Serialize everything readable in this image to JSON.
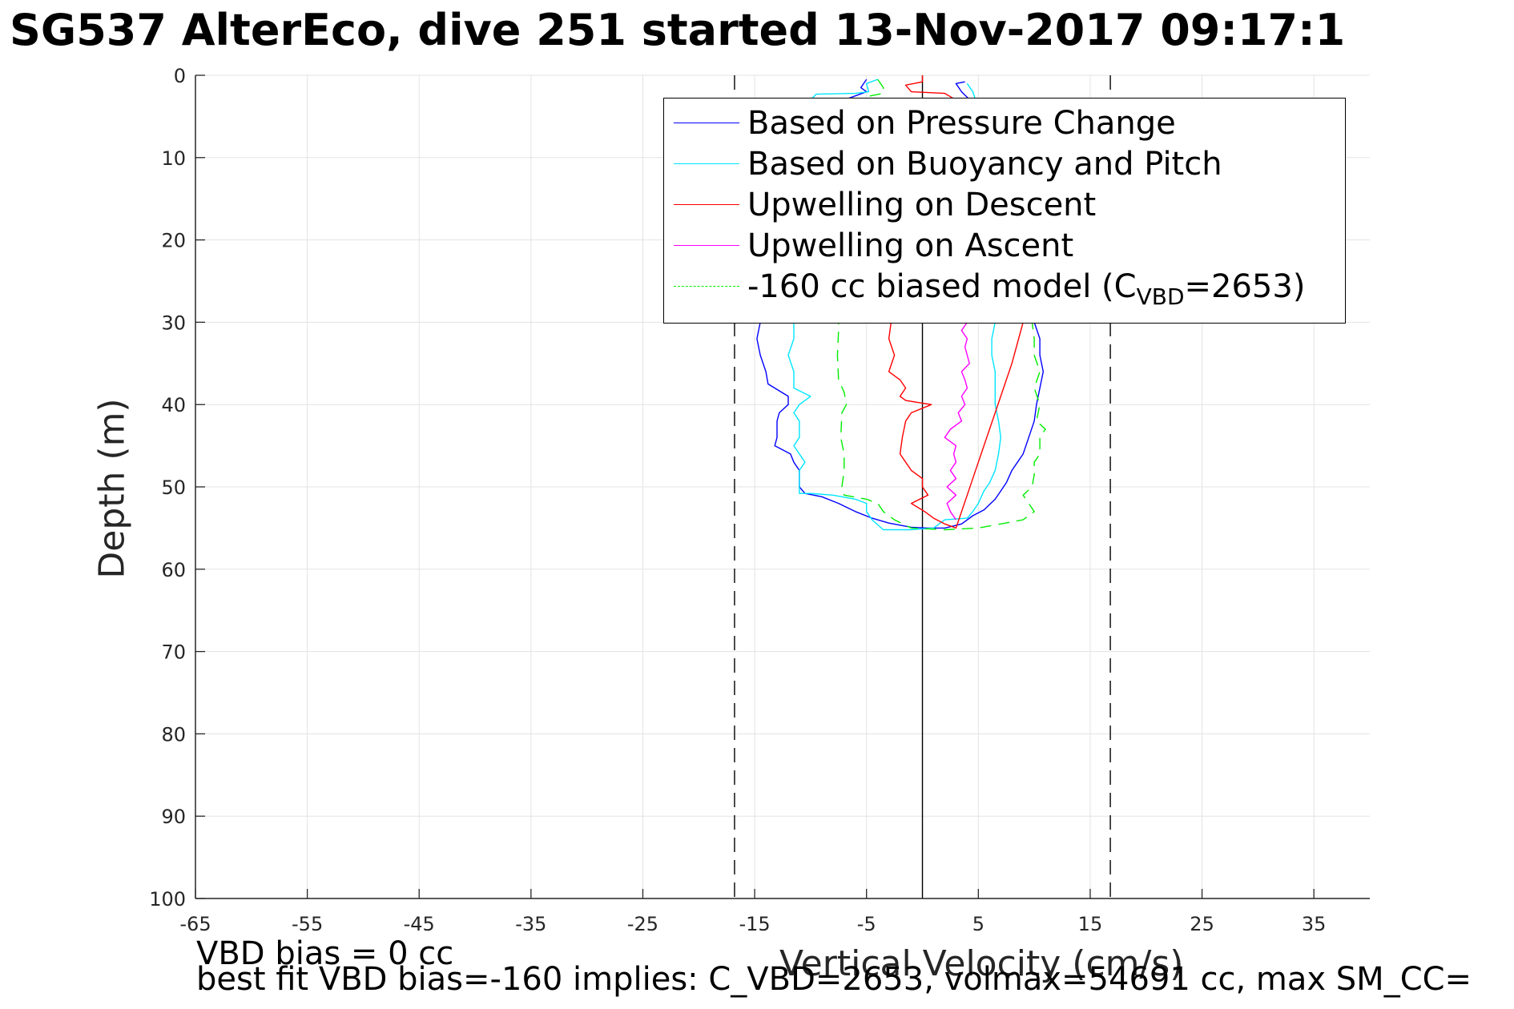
{
  "title": "SG537 AlterEco, dive 251 started 13-Nov-2017 09:17:1",
  "xlabel": "Vertical Velocity (cm/s)",
  "ylabel": "Depth (m)",
  "footer": {
    "line1": "VBD bias = 0 cc",
    "line2": "best fit VBD bias=-160 implies: C_VBD=2653, volmax=54691 cc, max SM_CC="
  },
  "legend": {
    "items": [
      {
        "label": "Based on Pressure Change",
        "color": "#0000ff",
        "dash": "solid"
      },
      {
        "label": "Based on Buoyancy and Pitch",
        "color": "#00e5ff",
        "dash": "solid"
      },
      {
        "label": "Upwelling on Descent",
        "color": "#ff0000",
        "dash": "solid"
      },
      {
        "label": "Upwelling on Ascent",
        "color": "#ff00ff",
        "dash": "solid"
      },
      {
        "label": "-160 cc biased model (C",
        "sub": "VBD",
        "suffix": "=2653)",
        "color": "#00ee00",
        "dash": "dashed"
      }
    ]
  },
  "chart_data": {
    "type": "line",
    "title": "SG537 AlterEco, dive 251 started 13-Nov-2017 09:17:1",
    "xlabel": "Vertical Velocity (cm/s)",
    "ylabel": "Depth (m)",
    "xlim": [
      -65,
      40
    ],
    "ylim": [
      0,
      100
    ],
    "y_reversed": true,
    "xticks": [
      -65,
      -55,
      -45,
      -35,
      -25,
      -15,
      -5,
      5,
      15,
      25,
      35
    ],
    "yticks": [
      0,
      10,
      20,
      30,
      40,
      50,
      60,
      70,
      80,
      90,
      100
    ],
    "grid": true,
    "legend_position": "top-right",
    "reference_lines": [
      {
        "x": 0,
        "style": "solid",
        "color": "#000000"
      },
      {
        "x": -16.8,
        "style": "dashed",
        "color": "#000000"
      },
      {
        "x": 16.8,
        "style": "dashed",
        "color": "#000000"
      }
    ],
    "series": [
      {
        "name": "Based on Pressure Change",
        "color": "#0000ff",
        "dash": "solid",
        "points": [
          [
            -5,
            0.5
          ],
          [
            -5.5,
            1.5
          ],
          [
            -5,
            2
          ],
          [
            -6,
            2.5
          ],
          [
            -7,
            3
          ],
          [
            -8,
            3.5
          ],
          [
            -9.5,
            4
          ],
          [
            -11,
            5
          ],
          [
            -12,
            6
          ],
          [
            -13,
            8
          ],
          [
            -13.5,
            10
          ],
          [
            -14,
            12
          ],
          [
            -14.5,
            14
          ],
          [
            -14.5,
            16
          ],
          [
            -15,
            18
          ],
          [
            -15,
            20
          ],
          [
            -14.8,
            22
          ],
          [
            -14.7,
            25
          ],
          [
            -14.5,
            28
          ],
          [
            -14.5,
            30
          ],
          [
            -14.8,
            32
          ],
          [
            -14.5,
            34
          ],
          [
            -14,
            36
          ],
          [
            -13.8,
            37.5
          ],
          [
            -12,
            39
          ],
          [
            -12,
            40
          ],
          [
            -12.8,
            41
          ],
          [
            -13,
            42
          ],
          [
            -13,
            44
          ],
          [
            -13.2,
            45
          ],
          [
            -11.8,
            46
          ],
          [
            -11.5,
            47
          ],
          [
            -11,
            48
          ],
          [
            -11,
            50
          ],
          [
            -10.5,
            50.8
          ],
          [
            -9,
            51.2
          ],
          [
            -7.5,
            52
          ],
          [
            -6,
            53
          ],
          [
            -4.5,
            53.8
          ],
          [
            -3,
            54.4
          ],
          [
            -1,
            54.9
          ],
          [
            0.5,
            55
          ],
          [
            2,
            55
          ],
          [
            3.5,
            54.5
          ],
          [
            4.5,
            53.5
          ],
          [
            5.5,
            52.8
          ],
          [
            6.5,
            51.5
          ],
          [
            7,
            50.5
          ],
          [
            7.5,
            49.5
          ],
          [
            8,
            48
          ],
          [
            8.5,
            47
          ],
          [
            9,
            46
          ],
          [
            9.5,
            44
          ],
          [
            10,
            42
          ],
          [
            10.2,
            40
          ],
          [
            10.5,
            38
          ],
          [
            10.8,
            36
          ],
          [
            10.5,
            34
          ],
          [
            10.5,
            32
          ],
          [
            10,
            30
          ],
          [
            9.8,
            28
          ],
          [
            9.8,
            26
          ],
          [
            9.5,
            24
          ],
          [
            9,
            22
          ],
          [
            8.5,
            20
          ],
          [
            8.5,
            18
          ],
          [
            8.2,
            16
          ],
          [
            8.2,
            14
          ],
          [
            8,
            12
          ],
          [
            7.8,
            10
          ],
          [
            7.5,
            8
          ],
          [
            6.5,
            6
          ],
          [
            5,
            4
          ],
          [
            3.5,
            2
          ],
          [
            3,
            1
          ],
          [
            3.8,
            0.8
          ]
        ]
      },
      {
        "name": "Based on Buoyancy and Pitch",
        "color": "#00e5ff",
        "dash": "solid",
        "points": [
          [
            -4,
            0.5
          ],
          [
            -5,
            1
          ],
          [
            -4.8,
            2
          ],
          [
            -6,
            2.2
          ],
          [
            -9.5,
            2.3
          ],
          [
            -10,
            3
          ],
          [
            -10.5,
            5
          ],
          [
            -11,
            8
          ],
          [
            -11.5,
            10
          ],
          [
            -11.8,
            12
          ],
          [
            -12,
            15
          ],
          [
            -12,
            18
          ],
          [
            -12.2,
            20
          ],
          [
            -12,
            22
          ],
          [
            -12,
            25
          ],
          [
            -11.5,
            28
          ],
          [
            -11.5,
            30
          ],
          [
            -11.5,
            32
          ],
          [
            -12,
            34
          ],
          [
            -11.5,
            36
          ],
          [
            -11.5,
            38
          ],
          [
            -10,
            39
          ],
          [
            -11,
            40
          ],
          [
            -11.5,
            41
          ],
          [
            -11,
            42
          ],
          [
            -11,
            44
          ],
          [
            -11.5,
            45
          ],
          [
            -11,
            46
          ],
          [
            -10.5,
            47
          ],
          [
            -11,
            48
          ],
          [
            -11,
            50
          ],
          [
            -11,
            50.8
          ],
          [
            -10,
            50.8
          ],
          [
            -8,
            51
          ],
          [
            -6,
            51.5
          ],
          [
            -5,
            52
          ],
          [
            -5,
            53
          ],
          [
            -4.5,
            54
          ],
          [
            -3.5,
            55.2
          ],
          [
            -1,
            55.2
          ],
          [
            1,
            55
          ],
          [
            2,
            54
          ],
          [
            4,
            53.8
          ],
          [
            4.5,
            53
          ],
          [
            5,
            52
          ],
          [
            5.5,
            50.5
          ],
          [
            6,
            49.5
          ],
          [
            6.5,
            48
          ],
          [
            6.8,
            46
          ],
          [
            7,
            44
          ],
          [
            6.8,
            42
          ],
          [
            6.5,
            40
          ],
          [
            6.5,
            38
          ],
          [
            6.5,
            36
          ],
          [
            6.2,
            34
          ],
          [
            6.2,
            32
          ],
          [
            6.5,
            30
          ],
          [
            6.2,
            28
          ],
          [
            6.2,
            26
          ],
          [
            6.5,
            24
          ],
          [
            6.5,
            22
          ],
          [
            6.5,
            20
          ],
          [
            6.2,
            18
          ],
          [
            6.2,
            16
          ],
          [
            6,
            14
          ],
          [
            6,
            12
          ],
          [
            6,
            10
          ],
          [
            5.8,
            8
          ],
          [
            5.5,
            6
          ],
          [
            5,
            4
          ],
          [
            4.5,
            2
          ],
          [
            4,
            1
          ]
        ]
      },
      {
        "name": "Upwelling on Descent",
        "color": "#ff0000",
        "dash": "solid",
        "points": [
          [
            0,
            0
          ],
          [
            0,
            0.8
          ],
          [
            -1.5,
            1.2
          ],
          [
            -1,
            2
          ],
          [
            2,
            2.2
          ],
          [
            3,
            3
          ],
          [
            3,
            4
          ],
          [
            2,
            5
          ],
          [
            1,
            6
          ],
          [
            0.2,
            7
          ],
          [
            -0.5,
            8
          ],
          [
            -1,
            10
          ],
          [
            -1.5,
            12
          ],
          [
            -1.5,
            14
          ],
          [
            -1.2,
            16
          ],
          [
            -0.8,
            18
          ],
          [
            -1,
            20
          ],
          [
            -1.5,
            22
          ],
          [
            -2,
            24
          ],
          [
            -2.5,
            26
          ],
          [
            -2.5,
            28
          ],
          [
            -2.8,
            30
          ],
          [
            -3,
            32
          ],
          [
            -2.5,
            34
          ],
          [
            -3,
            36
          ],
          [
            -2,
            37
          ],
          [
            -1.5,
            38
          ],
          [
            -2,
            39
          ],
          [
            -1.5,
            39.5
          ],
          [
            0.8,
            40
          ],
          [
            -1,
            41
          ],
          [
            -1.5,
            42
          ],
          [
            -1.8,
            44
          ],
          [
            -2,
            46
          ],
          [
            -1.5,
            47
          ],
          [
            -1,
            48
          ],
          [
            0,
            49
          ],
          [
            0,
            50
          ],
          [
            0.5,
            51
          ],
          [
            -1,
            52
          ],
          [
            0.2,
            53
          ],
          [
            1,
            53.8
          ],
          [
            2,
            54.5
          ],
          [
            3,
            55
          ],
          [
            4,
            51
          ],
          [
            5,
            47
          ],
          [
            6,
            43
          ],
          [
            7,
            39
          ],
          [
            8,
            35
          ],
          [
            9,
            30
          ]
        ]
      },
      {
        "name": "Upwelling on Ascent",
        "color": "#ff00ff",
        "dash": "solid",
        "points": [
          [
            3,
            54
          ],
          [
            2.5,
            53
          ],
          [
            2.2,
            52
          ],
          [
            3,
            51
          ],
          [
            2.2,
            50
          ],
          [
            3,
            49
          ],
          [
            2.5,
            48
          ],
          [
            3,
            47
          ],
          [
            2.8,
            46
          ],
          [
            3,
            45
          ],
          [
            2,
            44
          ],
          [
            2.5,
            43
          ],
          [
            3.5,
            42
          ],
          [
            3.2,
            41
          ],
          [
            3.8,
            40
          ],
          [
            3.5,
            39
          ],
          [
            4,
            38
          ],
          [
            3.8,
            37
          ],
          [
            3.5,
            36
          ],
          [
            4.2,
            35
          ],
          [
            4,
            34
          ],
          [
            3.8,
            33
          ],
          [
            4,
            32
          ],
          [
            3.5,
            31
          ],
          [
            4,
            30
          ]
        ]
      },
      {
        "name": "-160 cc biased model (C_VBD=2653)",
        "color": "#00ee00",
        "dash": "dashed",
        "points": [
          [
            -4,
            0.5
          ],
          [
            -3.5,
            1.5
          ],
          [
            -3.5,
            2.2
          ],
          [
            -5,
            2.6
          ],
          [
            -6,
            3.5
          ],
          [
            -6.5,
            5
          ],
          [
            -7,
            7
          ],
          [
            -7.3,
            10
          ],
          [
            -7.5,
            13
          ],
          [
            -7.5,
            16
          ],
          [
            -7.5,
            19
          ],
          [
            -7.5,
            22
          ],
          [
            -7.5,
            25
          ],
          [
            -7.5,
            28
          ],
          [
            -7.5,
            31
          ],
          [
            -7.6,
            34
          ],
          [
            -7.5,
            37
          ],
          [
            -7,
            38.5
          ],
          [
            -6.8,
            40
          ],
          [
            -7.2,
            41
          ],
          [
            -7.3,
            44
          ],
          [
            -7,
            46
          ],
          [
            -7,
            48
          ],
          [
            -7.2,
            50
          ],
          [
            -7,
            51
          ],
          [
            -5,
            51.5
          ],
          [
            -4,
            52
          ],
          [
            -3.5,
            53
          ],
          [
            -2.5,
            54
          ],
          [
            -1,
            55
          ],
          [
            2,
            55.2
          ],
          [
            5,
            55
          ],
          [
            7,
            54.5
          ],
          [
            9,
            54
          ],
          [
            10,
            53
          ],
          [
            9.5,
            52
          ],
          [
            9,
            51
          ],
          [
            9.8,
            50
          ],
          [
            10,
            48.5
          ],
          [
            10,
            47
          ],
          [
            10.5,
            46
          ],
          [
            10.5,
            44
          ],
          [
            11,
            43
          ],
          [
            10.2,
            42
          ],
          [
            10.5,
            40
          ],
          [
            10,
            38
          ],
          [
            10.5,
            36
          ],
          [
            10,
            34
          ],
          [
            10,
            32
          ],
          [
            9.8,
            30
          ]
        ]
      }
    ]
  }
}
